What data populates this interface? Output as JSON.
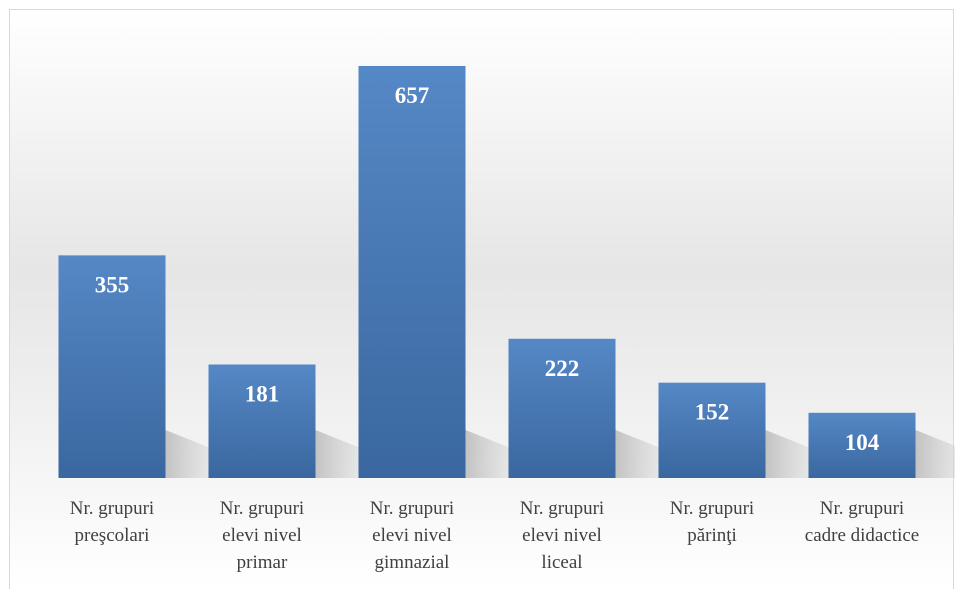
{
  "chart_data": {
    "type": "bar",
    "categories": [
      "Nr. grupuri preşcolari",
      "Nr. grupuri elevi nivel primar",
      "Nr. grupuri elevi nivel gimnazial",
      "Nr. grupuri elevi nivel liceal",
      "Nr. grupuri părinţi",
      "Nr. grupuri cadre didactice"
    ],
    "values": [
      355,
      181,
      657,
      222,
      152,
      104
    ],
    "color": "#4a7ab8",
    "ylim": [
      0,
      700
    ]
  }
}
